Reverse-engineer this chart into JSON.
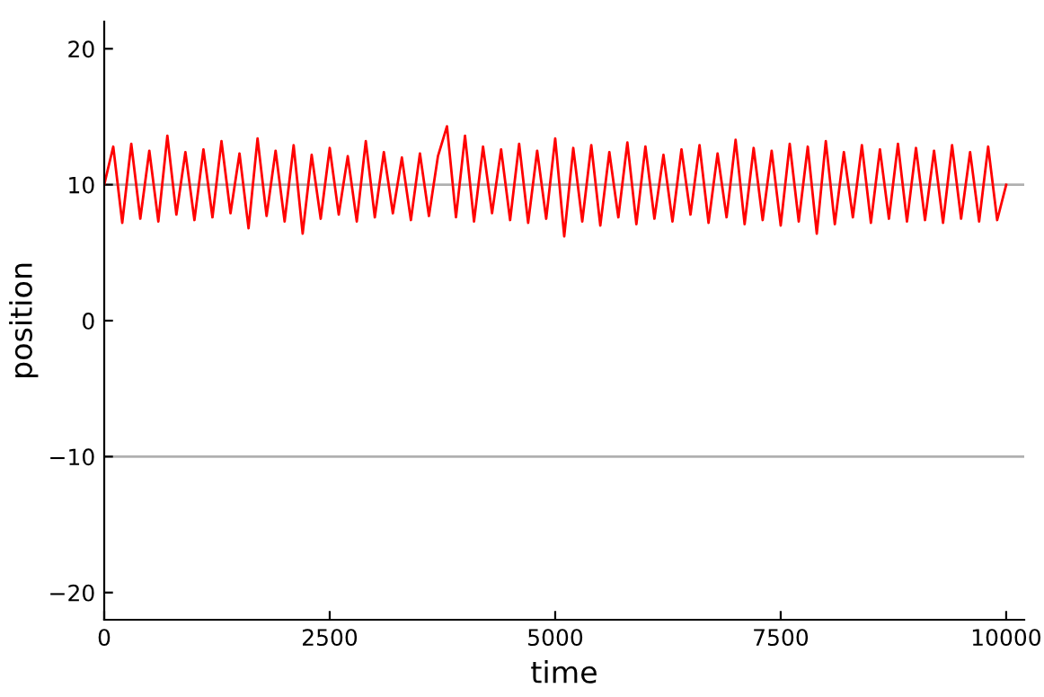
{
  "chart_data": {
    "type": "line",
    "xlabel": "time",
    "ylabel": "position",
    "x": [
      0,
      100,
      200,
      300,
      400,
      500,
      600,
      700,
      800,
      900,
      1000,
      1100,
      1200,
      1300,
      1400,
      1500,
      1600,
      1700,
      1800,
      1900,
      2000,
      2100,
      2200,
      2300,
      2400,
      2500,
      2600,
      2700,
      2800,
      2900,
      3000,
      3100,
      3200,
      3300,
      3400,
      3500,
      3600,
      3700,
      3800,
      3900,
      4000,
      4100,
      4200,
      4300,
      4400,
      4500,
      4600,
      4700,
      4800,
      4900,
      5000,
      5100,
      5200,
      5300,
      5400,
      5500,
      5600,
      5700,
      5800,
      5900,
      6000,
      6100,
      6200,
      6300,
      6400,
      6500,
      6600,
      6700,
      6800,
      6900,
      7000,
      7100,
      7200,
      7300,
      7400,
      7500,
      7600,
      7700,
      7800,
      7900,
      8000,
      8100,
      8200,
      8300,
      8400,
      8500,
      8600,
      8700,
      8800,
      8900,
      9000,
      9100,
      9200,
      9300,
      9400,
      9500,
      9600,
      9700,
      9800,
      9900,
      10000
    ],
    "series": [
      {
        "color": "#ff0000",
        "values": [
          10,
          12.8,
          7.2,
          13,
          7.5,
          12.5,
          7.3,
          13.6,
          7.8,
          12.4,
          7.4,
          12.6,
          7.6,
          13.2,
          7.9,
          12.3,
          6.8,
          13.4,
          7.7,
          12.5,
          7.3,
          12.9,
          6.4,
          12.2,
          7.5,
          12.7,
          7.8,
          12.1,
          7.3,
          13.2,
          7.6,
          12.4,
          7.9,
          12.0,
          7.4,
          12.3,
          7.7,
          12.1,
          14.3,
          7.6,
          13.6,
          7.3,
          12.8,
          7.9,
          12.6,
          7.4,
          13.0,
          7.2,
          12.5,
          7.5,
          13.4,
          6.2,
          12.7,
          7.3,
          12.9,
          7.0,
          12.4,
          7.6,
          13.1,
          7.1,
          12.8,
          7.5,
          12.2,
          7.3,
          12.6,
          7.8,
          12.9,
          7.2,
          12.3,
          7.6,
          13.3,
          7.1,
          12.7,
          7.4,
          12.5,
          7.0,
          13.0,
          7.3,
          12.8,
          6.4,
          13.2,
          7.1,
          12.4,
          7.6,
          12.9,
          7.2,
          12.6,
          7.5,
          13.0,
          7.3,
          12.7,
          7.4,
          12.5,
          7.2,
          12.9,
          7.5,
          12.4,
          7.3,
          12.8,
          7.4,
          10
        ]
      }
    ],
    "xlim": [
      0,
      10200
    ],
    "xticks": [
      0,
      2500,
      5000,
      7500,
      10000
    ],
    "ylim": [
      -22,
      22
    ],
    "yticks": [
      {
        "value": -20,
        "label": "−20"
      },
      {
        "value": -10,
        "label": "−10"
      },
      0,
      10,
      20
    ],
    "ref_lines": [
      {
        "axis": "y",
        "value": 10,
        "color": "#b0b0b0"
      },
      {
        "axis": "y",
        "value": -10,
        "color": "#b0b0b0"
      }
    ],
    "grid": false,
    "legend": false
  }
}
